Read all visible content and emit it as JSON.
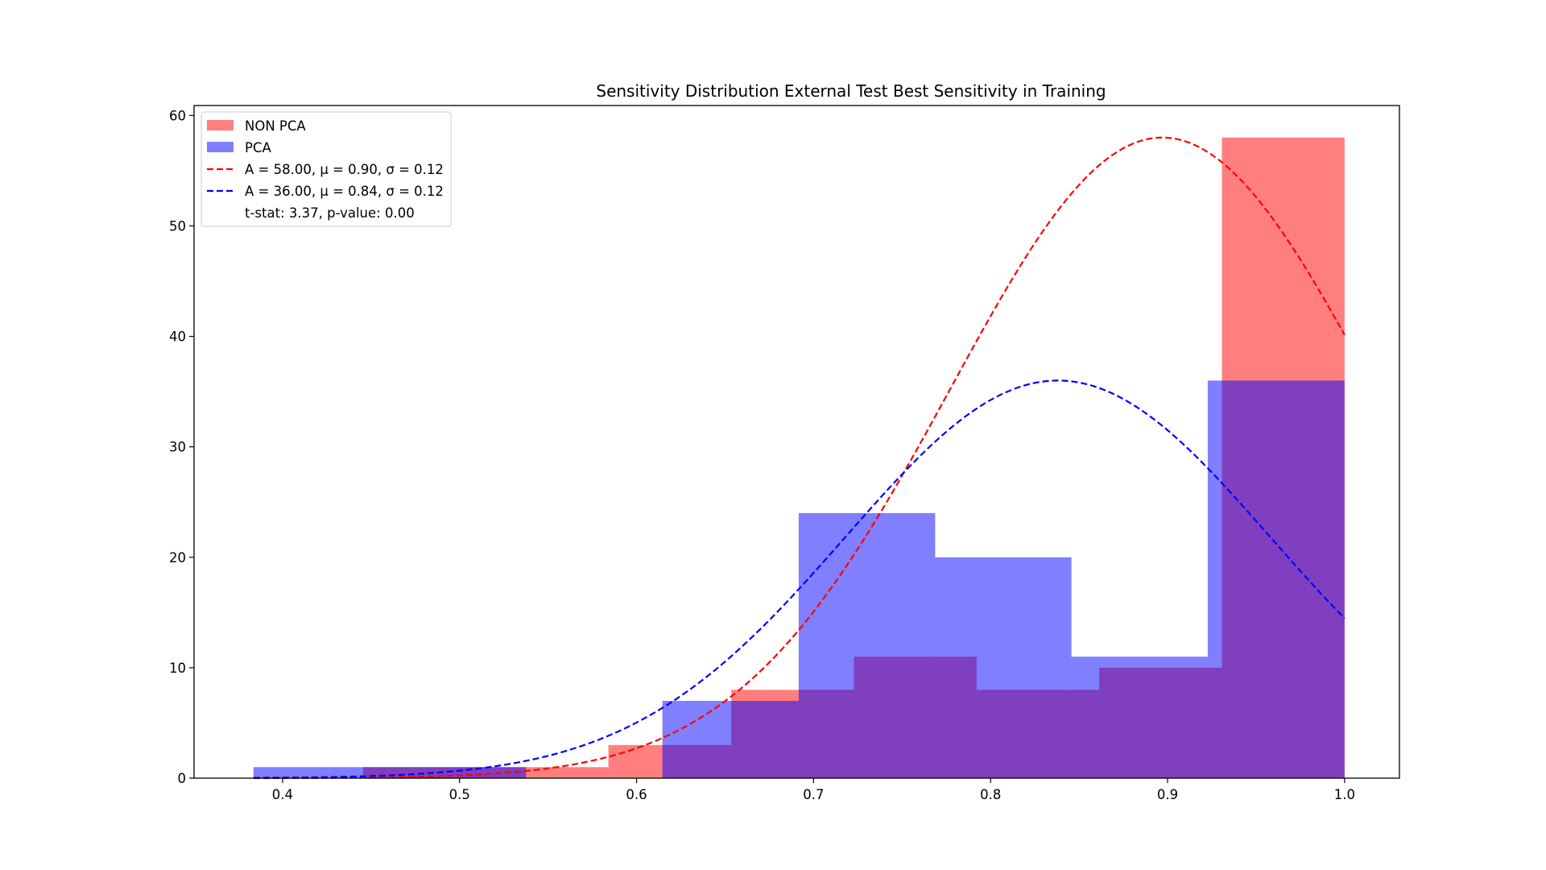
{
  "chart_data": {
    "type": "bar",
    "title": "Sensitivity Distribution External Test Best Sensitivity in Training",
    "xlabel": "",
    "ylabel": "",
    "xlim": [
      0.35,
      1.031
    ],
    "ylim": [
      0,
      60.9
    ],
    "xticks": [
      0.4,
      0.5,
      0.6,
      0.7,
      0.8,
      0.9,
      1.0
    ],
    "xtick_labels": [
      "0.4",
      "0.5",
      "0.6",
      "0.7",
      "0.8",
      "0.9",
      "1.0"
    ],
    "yticks": [
      0,
      10,
      20,
      30,
      40,
      50,
      60
    ],
    "ytick_labels": [
      "0",
      "10",
      "20",
      "30",
      "40",
      "50",
      "60"
    ],
    "legend_position": "top-left",
    "series": [
      {
        "name": "NON PCA",
        "kind": "histogram",
        "color": "#ff8080",
        "bin_edges": [
          0.4455,
          0.5148,
          0.5841,
          0.6535,
          0.7228,
          0.7921,
          0.8614,
          0.9307,
          1.0
        ],
        "counts": [
          1,
          1,
          3,
          8,
          11,
          8,
          10,
          58
        ]
      },
      {
        "name": "PCA",
        "kind": "histogram",
        "color": "#8080ff",
        "bin_edges": [
          0.3836,
          0.4606,
          0.5376,
          0.6146,
          0.6916,
          0.7687,
          0.8457,
          0.9227,
          1.0
        ],
        "counts": [
          1,
          1,
          0,
          7,
          24,
          20,
          11,
          36
        ]
      },
      {
        "name": "A = 58.00, μ = 0.90, σ = 0.12",
        "kind": "gaussian",
        "color": "#ff0000",
        "A": 58.0,
        "mu": 0.897,
        "sigma": 0.12,
        "x_range": [
          0.3836,
          1.0
        ]
      },
      {
        "name": "A = 36.00, μ = 0.84, σ = 0.12",
        "kind": "gaussian",
        "color": "#0000ff",
        "A": 36.0,
        "mu": 0.838,
        "sigma": 0.12,
        "x_range": [
          0.3836,
          1.0
        ]
      }
    ],
    "annotations": [
      "t-stat: 3.37, p-value: 0.00"
    ]
  }
}
